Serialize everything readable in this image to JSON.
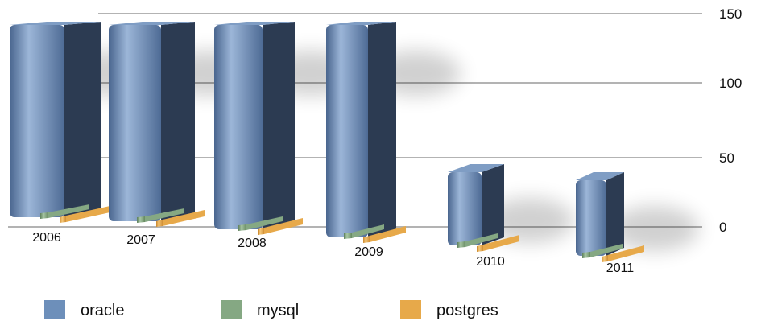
{
  "chart_data": {
    "type": "bar",
    "categories": [
      "2006",
      "2007",
      "2008",
      "2009",
      "2010",
      "2011"
    ],
    "series": [
      {
        "name": "oracle",
        "values": [
          150,
          150,
          150,
          150,
          50,
          50
        ]
      },
      {
        "name": "mysql",
        "values": [
          3,
          3,
          3,
          3,
          3,
          3
        ]
      },
      {
        "name": "postgres",
        "values": [
          2,
          2,
          2,
          2,
          2,
          2
        ]
      }
    ],
    "yticks": [
      "0",
      "50",
      "100",
      "150"
    ],
    "ylim": [
      0,
      150
    ],
    "grid": true,
    "legend_position": "bottom",
    "colors": {
      "oracle": "#6d8fba",
      "mysql": "#85a883",
      "postgres": "#e7a94a"
    }
  }
}
